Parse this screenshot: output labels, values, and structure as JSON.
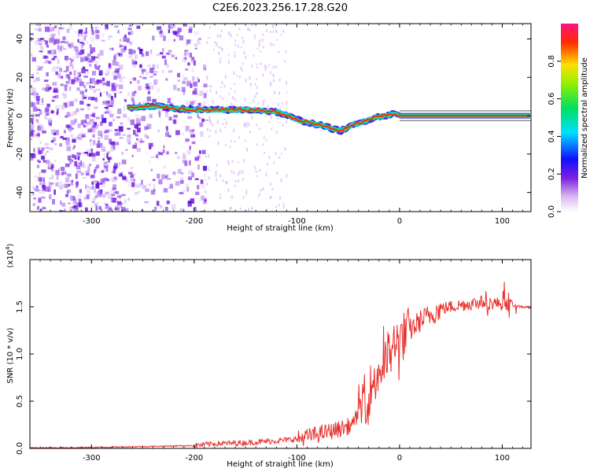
{
  "figure": {
    "title": "C2E6.2023.256.17.28.G20"
  },
  "chart_data": [
    {
      "type": "heatmap",
      "panel": "spectrogram",
      "xlabel": "Height of straight line (km)",
      "ylabel": "Frequency (Hz)",
      "xlim": [
        -360,
        128
      ],
      "ylim": [
        -50,
        48
      ],
      "xticks": [
        -300,
        -200,
        -100,
        0,
        100
      ],
      "xtick_labels": [
        "-300",
        "-200",
        "-100",
        "0",
        "100"
      ],
      "yticks": [
        -40,
        -20,
        0,
        20,
        40
      ],
      "ytick_labels": [
        "-40",
        "-20",
        "0",
        "20",
        "40"
      ],
      "colorbar": {
        "label": "Normalized spectral amplitude",
        "range": [
          0,
          1
        ],
        "ticks": [
          0.0,
          0.2,
          0.4,
          0.6,
          0.8
        ],
        "tick_labels": [
          "0.0",
          "0.2",
          "0.4",
          "0.6",
          "0.8"
        ],
        "colormap": "rainbow (white-purple-blue-cyan-green-yellow-red-pink)"
      },
      "ridge": {
        "description": "peak frequency of signal along height",
        "x": [
          -265,
          -240,
          -200,
          -160,
          -140,
          -120,
          -100,
          -85,
          -70,
          -58,
          -45,
          -35,
          -25,
          -15,
          -5,
          0,
          20,
          60,
          100,
          125
        ],
        "y": [
          4,
          5,
          3,
          3,
          3,
          2,
          -2,
          -4,
          -6,
          -8,
          -5,
          -3,
          -1,
          0,
          1,
          0,
          0,
          0,
          0,
          0
        ]
      },
      "noise_region_x": [
        -360,
        -190
      ]
    },
    {
      "type": "line",
      "panel": "snr",
      "xlabel": "Height of straight line (km)",
      "ylabel": "SNR (10 * v/v)",
      "scale_label": "(x10",
      "scale_exponent": "4",
      "scale_close": ")",
      "xlim": [
        -360,
        128
      ],
      "ylim": [
        0,
        2.0
      ],
      "xticks": [
        -300,
        -200,
        -100,
        0,
        100
      ],
      "xtick_labels": [
        "-300",
        "-200",
        "-100",
        "0",
        "100"
      ],
      "yticks": [
        0.0,
        0.5,
        1.0,
        1.5
      ],
      "ytick_labels": [
        "0.0",
        "0.5",
        "1.0",
        "1.5"
      ],
      "color": "#e8312e",
      "series": [
        {
          "x": [
            -360,
            -300,
            -250,
            -200,
            -180,
            -150,
            -120,
            -100,
            -80,
            -60,
            -45,
            -40,
            -30,
            -20,
            -10,
            0,
            20,
            40,
            60,
            80,
            100,
            120,
            128
          ],
          "y": [
            0.005,
            0.01,
            0.02,
            0.03,
            0.05,
            0.06,
            0.08,
            0.1,
            0.15,
            0.2,
            0.25,
            0.4,
            0.6,
            0.8,
            1.0,
            1.15,
            1.35,
            1.48,
            1.52,
            1.55,
            1.53,
            1.5,
            1.49
          ]
        }
      ]
    }
  ]
}
